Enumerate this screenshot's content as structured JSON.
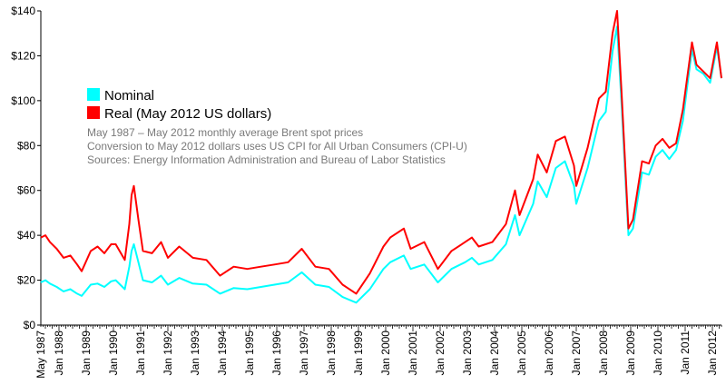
{
  "chart_data": {
    "type": "line",
    "title": "",
    "xlabel": "",
    "ylabel": "",
    "x_range": [
      "May 1987",
      "May 2012"
    ],
    "ylim": [
      0,
      140
    ],
    "y_ticks": [
      0,
      20,
      40,
      60,
      80,
      100,
      120,
      140
    ],
    "y_tick_labels": [
      "$0",
      "$20",
      "$40",
      "$60",
      "$80",
      "$100",
      "$120",
      "$140"
    ],
    "x_tick_labels": [
      "May 1987",
      "Jan 1988",
      "Jan 1989",
      "Jan 1990",
      "Jan 1991",
      "Jan 1992",
      "Jan 1993",
      "Jan 1994",
      "Jan 1995",
      "Jan 1996",
      "Jan 1997",
      "Jan 1998",
      "Jan 1999",
      "Jan 2000",
      "Jan 2001",
      "Jan 2002",
      "Jan 2003",
      "Jan 2004",
      "Jan 2005",
      "Jan 2006",
      "Jan 2007",
      "Jan 2008",
      "Jan 2009",
      "Jan 2010",
      "Jan 2011",
      "Jan 2012"
    ],
    "grid": false,
    "legend_position": "upper-left",
    "notes": [
      "May 1987 – May 2012 monthly average Brent spot prices",
      "Conversion to May 2012 dollars uses US CPI for All Urban Consumers (CPI-U)",
      "Sources: Energy Information Administration and Bureau of Labor Statistics"
    ],
    "series": [
      {
        "name": "Nominal",
        "color": "#00ffff",
        "points": [
          [
            "1987-05",
            19
          ],
          [
            "1987-07",
            20
          ],
          [
            "1987-09",
            18.5
          ],
          [
            "1987-12",
            17
          ],
          [
            "1988-03",
            15
          ],
          [
            "1988-06",
            16
          ],
          [
            "1988-09",
            14
          ],
          [
            "1988-11",
            13
          ],
          [
            "1989-03",
            18
          ],
          [
            "1989-06",
            18.5
          ],
          [
            "1989-09",
            17
          ],
          [
            "1989-12",
            19.5
          ],
          [
            "1990-02",
            20
          ],
          [
            "1990-06",
            16
          ],
          [
            "1990-08",
            26
          ],
          [
            "1990-09",
            33
          ],
          [
            "1990-10",
            36
          ],
          [
            "1990-12",
            28
          ],
          [
            "1991-02",
            20
          ],
          [
            "1991-06",
            19
          ],
          [
            "1991-10",
            22
          ],
          [
            "1992-01",
            18
          ],
          [
            "1992-06",
            21
          ],
          [
            "1992-12",
            18.5
          ],
          [
            "1993-06",
            18
          ],
          [
            "1993-12",
            14
          ],
          [
            "1994-06",
            16.5
          ],
          [
            "1994-12",
            16
          ],
          [
            "1995-06",
            17
          ],
          [
            "1995-12",
            18
          ],
          [
            "1996-06",
            19
          ],
          [
            "1996-12",
            23.5
          ],
          [
            "1997-06",
            18
          ],
          [
            "1997-12",
            17
          ],
          [
            "1998-06",
            12.5
          ],
          [
            "1998-12",
            10
          ],
          [
            "1999-06",
            16
          ],
          [
            "1999-12",
            25
          ],
          [
            "2000-03",
            28
          ],
          [
            "2000-09",
            31
          ],
          [
            "2000-12",
            25
          ],
          [
            "2001-06",
            27
          ],
          [
            "2001-12",
            19
          ],
          [
            "2002-06",
            25
          ],
          [
            "2002-12",
            28
          ],
          [
            "2003-03",
            30
          ],
          [
            "2003-06",
            27
          ],
          [
            "2003-12",
            29
          ],
          [
            "2004-06",
            36
          ],
          [
            "2004-10",
            49
          ],
          [
            "2004-12",
            40
          ],
          [
            "2005-06",
            54
          ],
          [
            "2005-08",
            64
          ],
          [
            "2005-12",
            57
          ],
          [
            "2006-04",
            70
          ],
          [
            "2006-08",
            73
          ],
          [
            "2006-12",
            62
          ],
          [
            "2007-01",
            54
          ],
          [
            "2007-06",
            70
          ],
          [
            "2007-11",
            91
          ],
          [
            "2008-02",
            95
          ],
          [
            "2008-05",
            122
          ],
          [
            "2008-07",
            133
          ],
          [
            "2008-09",
            98
          ],
          [
            "2008-12",
            40
          ],
          [
            "2009-02",
            43
          ],
          [
            "2009-06",
            68
          ],
          [
            "2009-09",
            67
          ],
          [
            "2009-12",
            75
          ],
          [
            "2010-03",
            78
          ],
          [
            "2010-06",
            74
          ],
          [
            "2010-09",
            78
          ],
          [
            "2010-12",
            91
          ],
          [
            "2011-04",
            123
          ],
          [
            "2011-06",
            114
          ],
          [
            "2011-09",
            112
          ],
          [
            "2011-12",
            108
          ],
          [
            "2012-03",
            124
          ],
          [
            "2012-05",
            110
          ]
        ]
      },
      {
        "name": "Real (May 2012 US dollars)",
        "color": "#ff0000",
        "points": [
          [
            "1987-05",
            39
          ],
          [
            "1987-07",
            40
          ],
          [
            "1987-09",
            37
          ],
          [
            "1987-12",
            34
          ],
          [
            "1988-03",
            30
          ],
          [
            "1988-06",
            31
          ],
          [
            "1988-09",
            27
          ],
          [
            "1988-11",
            24
          ],
          [
            "1989-03",
            33
          ],
          [
            "1989-06",
            35
          ],
          [
            "1989-09",
            32
          ],
          [
            "1989-12",
            36
          ],
          [
            "1990-02",
            36
          ],
          [
            "1990-06",
            29
          ],
          [
            "1990-08",
            45
          ],
          [
            "1990-09",
            58
          ],
          [
            "1990-10",
            62
          ],
          [
            "1990-12",
            47
          ],
          [
            "1991-02",
            33
          ],
          [
            "1991-06",
            32
          ],
          [
            "1991-10",
            37
          ],
          [
            "1992-01",
            30
          ],
          [
            "1992-06",
            35
          ],
          [
            "1992-12",
            30
          ],
          [
            "1993-06",
            29
          ],
          [
            "1993-12",
            22
          ],
          [
            "1994-06",
            26
          ],
          [
            "1994-12",
            25
          ],
          [
            "1995-06",
            26
          ],
          [
            "1995-12",
            27
          ],
          [
            "1996-06",
            28
          ],
          [
            "1996-12",
            34
          ],
          [
            "1997-06",
            26
          ],
          [
            "1997-12",
            25
          ],
          [
            "1998-06",
            18
          ],
          [
            "1998-12",
            14
          ],
          [
            "1999-06",
            23
          ],
          [
            "1999-12",
            35
          ],
          [
            "2000-03",
            39
          ],
          [
            "2000-09",
            43
          ],
          [
            "2000-12",
            34
          ],
          [
            "2001-06",
            37
          ],
          [
            "2001-12",
            25
          ],
          [
            "2002-06",
            33
          ],
          [
            "2002-12",
            37
          ],
          [
            "2003-03",
            39
          ],
          [
            "2003-06",
            35
          ],
          [
            "2003-12",
            37
          ],
          [
            "2004-06",
            45
          ],
          [
            "2004-10",
            60
          ],
          [
            "2004-12",
            49
          ],
          [
            "2005-06",
            65
          ],
          [
            "2005-08",
            76
          ],
          [
            "2005-12",
            68
          ],
          [
            "2006-04",
            82
          ],
          [
            "2006-08",
            84
          ],
          [
            "2006-12",
            71
          ],
          [
            "2007-01",
            62
          ],
          [
            "2007-06",
            79
          ],
          [
            "2007-11",
            101
          ],
          [
            "2008-02",
            104
          ],
          [
            "2008-05",
            130
          ],
          [
            "2008-07",
            140
          ],
          [
            "2008-09",
            103
          ],
          [
            "2008-12",
            43
          ],
          [
            "2009-02",
            47
          ],
          [
            "2009-06",
            73
          ],
          [
            "2009-09",
            72
          ],
          [
            "2009-12",
            80
          ],
          [
            "2010-03",
            83
          ],
          [
            "2010-06",
            79
          ],
          [
            "2010-09",
            81
          ],
          [
            "2010-12",
            96
          ],
          [
            "2011-04",
            126
          ],
          [
            "2011-06",
            116
          ],
          [
            "2011-09",
            113
          ],
          [
            "2011-12",
            110
          ],
          [
            "2012-03",
            126
          ],
          [
            "2012-05",
            110
          ]
        ]
      }
    ]
  }
}
